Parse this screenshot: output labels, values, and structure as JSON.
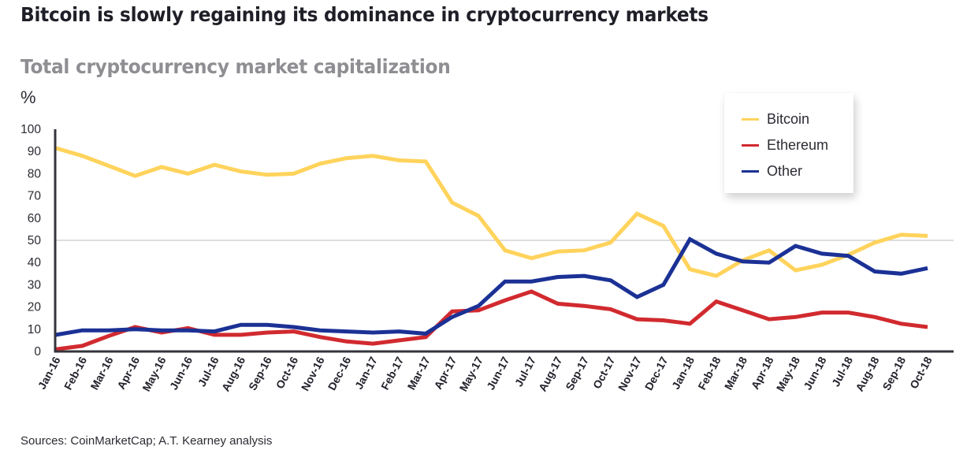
{
  "chart_data": {
    "type": "line",
    "title": "Bitcoin is slowly regaining its dominance in cryptocurrency markets",
    "subtitle": "Total cryptocurrency market capitalization",
    "xlabel": "",
    "ylabel": "%",
    "ylim": [
      0,
      100
    ],
    "yticks": [
      0,
      10,
      20,
      30,
      40,
      50,
      60,
      70,
      80,
      90,
      100
    ],
    "reference_line": 50,
    "grid": false,
    "legend_position": "top-right",
    "categories": [
      "Jan-16",
      "Feb-16",
      "Mar-16",
      "Apr-16",
      "May-16",
      "Jun-16",
      "Jul-16",
      "Aug-16",
      "Sep-16",
      "Oct-16",
      "Nov-16",
      "Dec-16",
      "Jan-17",
      "Feb-17",
      "Mar-17",
      "Apr-17",
      "May-17",
      "Jun-17",
      "Jul-17",
      "Aug-17",
      "Sep-17",
      "Oct-17",
      "Nov-17",
      "Dec-17",
      "Jan-18",
      "Feb-18",
      "Mar-18",
      "Apr-18",
      "May-18",
      "Jun-18",
      "Jul-18",
      "Aug-18",
      "Sep-18",
      "Oct-18"
    ],
    "series": [
      {
        "name": "Bitcoin",
        "color": "#ffd35c",
        "values": [
          91.5,
          88,
          83.5,
          79,
          83,
          80,
          84,
          81,
          79.5,
          80,
          84.5,
          87,
          88,
          86,
          85.5,
          67,
          61,
          45.5,
          42,
          45,
          45.5,
          49,
          62,
          56.5,
          37,
          34,
          41,
          45.5,
          36.5,
          39,
          43.5,
          49,
          52.5,
          52
        ]
      },
      {
        "name": "Ethereum",
        "color": "#d12a2f",
        "values": [
          1,
          2.5,
          7,
          11,
          8.5,
          10.5,
          7.5,
          7.5,
          8.5,
          9,
          6.5,
          4.5,
          3.5,
          5,
          6.5,
          18,
          18.5,
          23,
          27,
          21.5,
          20.5,
          19,
          14.5,
          14,
          12.5,
          22.5,
          18.5,
          14.5,
          15.5,
          17.5,
          17.5,
          15.5,
          12.5,
          11
        ]
      },
      {
        "name": "Other",
        "color": "#1b3195",
        "values": [
          7.5,
          9.5,
          9.5,
          10,
          9.5,
          9.5,
          9,
          12,
          12,
          11,
          9.5,
          9,
          8.5,
          9,
          8,
          15.5,
          20.5,
          31.5,
          31.5,
          33.5,
          34,
          32,
          24.5,
          30,
          50.5,
          44,
          40.5,
          40,
          47.5,
          44,
          43,
          36,
          35,
          37.5
        ]
      }
    ],
    "source": "Sources: CoinMarketCap; A.T. Kearney analysis"
  }
}
